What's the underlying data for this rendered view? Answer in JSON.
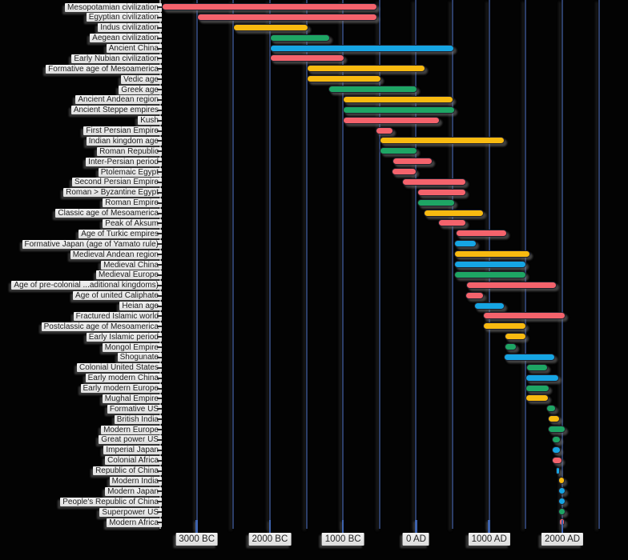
{
  "chart_data": {
    "type": "bar",
    "subtype": "horizontal-timeline-gantt",
    "title": "",
    "xlabel": "",
    "ylabel": "",
    "grid": "vertical-on",
    "legend": "none",
    "x_axis": {
      "unit": "years",
      "x_domain_years": [
        -3500,
        2900
      ],
      "gridline_interval_years": 500,
      "gridline_years": [
        -3000,
        -2500,
        -2000,
        -1500,
        -1000,
        -500,
        0,
        500,
        1000,
        1500,
        2000,
        2500
      ],
      "ticks": [
        {
          "label": "3000 BC",
          "year": -3000
        },
        {
          "label": "2000 BC",
          "year": -2000
        },
        {
          "label": "1000 BC",
          "year": -1000
        },
        {
          "label": "0 AD",
          "year": 0
        },
        {
          "label": "1000 AD",
          "year": 1000
        },
        {
          "label": "2000 AD",
          "year": 2000
        }
      ]
    },
    "colors": {
      "red": "#f4636c",
      "yellow": "#f8ba10",
      "green": "#1ea564",
      "blue": "#16a5e3",
      "bar_outline": "#20202b",
      "gridline": "#2c3e68",
      "axis_line": "#8f8f8f",
      "label_chip_bg": "#e9e9e9",
      "label_text": "#1c1c1c",
      "background": "#030303"
    },
    "rows": [
      {
        "label": "Mesopotamian civilization",
        "start": -3480,
        "end": -550,
        "color": "red"
      },
      {
        "label": "Egyptian civilization",
        "start": -3000,
        "end": -550,
        "color": "red"
      },
      {
        "label": "Indus civilization",
        "start": -2500,
        "end": -1500,
        "color": "yellow"
      },
      {
        "label": "Aegean civilization",
        "start": -2000,
        "end": -1200,
        "color": "green"
      },
      {
        "label": "Ancient China",
        "start": -2000,
        "end": 500,
        "color": "blue"
      },
      {
        "label": "Early Nubian civilization",
        "start": -2000,
        "end": -1000,
        "color": "red"
      },
      {
        "label": "Formative age of Mesoamerica",
        "start": -1500,
        "end": 100,
        "color": "yellow"
      },
      {
        "label": "Vedic age",
        "start": -1500,
        "end": -500,
        "color": "yellow"
      },
      {
        "label": "Greek age",
        "start": -1200,
        "end": 0,
        "color": "green"
      },
      {
        "label": "Ancient Andean region",
        "start": -1000,
        "end": 490,
        "color": "yellow"
      },
      {
        "label": "Ancient Steppe empires",
        "start": -1000,
        "end": 510,
        "color": "green"
      },
      {
        "label": "Kush",
        "start": -1000,
        "end": 300,
        "color": "red"
      },
      {
        "label": "First Persian Empire",
        "start": -550,
        "end": -330,
        "color": "red"
      },
      {
        "label": "Indian kingdom age",
        "start": -500,
        "end": 1190,
        "color": "yellow"
      },
      {
        "label": "Roman Republic",
        "start": -500,
        "end": -10,
        "color": "green"
      },
      {
        "label": "Inter-Persian period",
        "start": -320,
        "end": 200,
        "color": "red"
      },
      {
        "label": "Ptolemaic Egypt",
        "start": -330,
        "end": -20,
        "color": "red"
      },
      {
        "label": "Second Persian Empire",
        "start": -190,
        "end": 660,
        "color": "red"
      },
      {
        "label": "Roman > Byzantine Egypt",
        "start": 20,
        "end": 660,
        "color": "red"
      },
      {
        "label": "Roman Empire",
        "start": 20,
        "end": 510,
        "color": "green"
      },
      {
        "label": "Classic age of Mesoamerica",
        "start": 100,
        "end": 900,
        "color": "yellow"
      },
      {
        "label": "Peak of Aksum",
        "start": 300,
        "end": 660,
        "color": "red"
      },
      {
        "label": "Age of Turkic empires",
        "start": 540,
        "end": 1220,
        "color": "red"
      },
      {
        "label": "Formative Japan (age of Yamato rule)",
        "start": 520,
        "end": 810,
        "color": "blue"
      },
      {
        "label": "Medieval Andean region",
        "start": 520,
        "end": 1535,
        "color": "yellow"
      },
      {
        "label": "Medieval China",
        "start": 520,
        "end": 1490,
        "color": "blue"
      },
      {
        "label": "Medieval Europe",
        "start": 520,
        "end": 1490,
        "color": "green"
      },
      {
        "label": "Age of pre-colonial ...aditional kingdoms)",
        "start": 680,
        "end": 1900,
        "color": "red"
      },
      {
        "label": "Age of united Caliphate",
        "start": 670,
        "end": 900,
        "color": "red"
      },
      {
        "label": "Heian age",
        "start": 800,
        "end": 1190,
        "color": "blue"
      },
      {
        "label": "Fractured Islamic world",
        "start": 910,
        "end": 2025,
        "color": "red"
      },
      {
        "label": "Postclassic age of Mesoamerica",
        "start": 910,
        "end": 1490,
        "color": "yellow"
      },
      {
        "label": "Early Islamic period",
        "start": 1210,
        "end": 1490,
        "color": "yellow"
      },
      {
        "label": "Mongol Empire",
        "start": 1210,
        "end": 1350,
        "color": "green"
      },
      {
        "label": "Shogunate",
        "start": 1200,
        "end": 1880,
        "color": "blue"
      },
      {
        "label": "Colonial United States",
        "start": 1510,
        "end": 1780,
        "color": "green"
      },
      {
        "label": "Early modern China",
        "start": 1500,
        "end": 1935,
        "color": "blue"
      },
      {
        "label": "Early modern Europe",
        "start": 1500,
        "end": 1800,
        "color": "green"
      },
      {
        "label": "Mughal Empire",
        "start": 1500,
        "end": 1790,
        "color": "yellow"
      },
      {
        "label": "Formative US",
        "start": 1785,
        "end": 1885,
        "color": "green"
      },
      {
        "label": "British India",
        "start": 1800,
        "end": 1945,
        "color": "yellow"
      },
      {
        "label": "Modern Europe",
        "start": 1800,
        "end": 2020,
        "color": "green"
      },
      {
        "label": "Great power US",
        "start": 1855,
        "end": 1960,
        "color": "green"
      },
      {
        "label": "Imperial Japan",
        "start": 1855,
        "end": 1955,
        "color": "blue"
      },
      {
        "label": "Colonial Africa",
        "start": 1855,
        "end": 1975,
        "color": "red"
      },
      {
        "label": "Republic of China",
        "start": 1912,
        "end": 1950,
        "color": "blue"
      },
      {
        "label": "Modern India",
        "start": 1947,
        "end": 2015,
        "color": "yellow"
      },
      {
        "label": "Modern Japan",
        "start": 1945,
        "end": 2020,
        "color": "blue"
      },
      {
        "label": "People's Republic of China",
        "start": 1949,
        "end": 2025,
        "color": "blue"
      },
      {
        "label": "Superpower US",
        "start": 1945,
        "end": 2020,
        "color": "green"
      },
      {
        "label": "Modern Africa",
        "start": 1958,
        "end": 2015,
        "color": "red"
      }
    ]
  }
}
